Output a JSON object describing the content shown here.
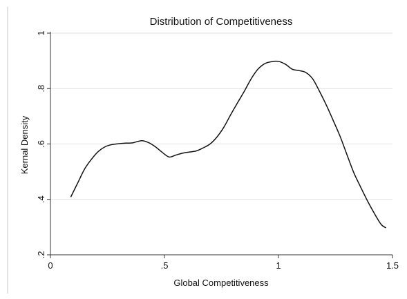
{
  "chart_data": {
    "type": "line",
    "title": "Distribution of Competitiveness",
    "xlabel": "Global Competitiveness",
    "ylabel": "Kernal Density",
    "xlim": [
      0,
      1.5
    ],
    "ylim": [
      0.2,
      1.0
    ],
    "xticks": [
      {
        "value": 0,
        "label": "0"
      },
      {
        "value": 0.5,
        "label": ".5"
      },
      {
        "value": 1,
        "label": "1"
      },
      {
        "value": 1.5,
        "label": "1.5"
      }
    ],
    "yticks": [
      {
        "value": 0.2,
        "label": ".2"
      },
      {
        "value": 0.4,
        "label": ".4"
      },
      {
        "value": 0.6,
        "label": ".6"
      },
      {
        "value": 0.8,
        "label": ".8"
      },
      {
        "value": 1.0,
        "label": "1"
      }
    ],
    "grid": true,
    "series": [
      {
        "x": [
          0.09,
          0.12,
          0.15,
          0.18,
          0.21,
          0.24,
          0.27,
          0.3,
          0.33,
          0.36,
          0.4,
          0.43,
          0.46,
          0.49,
          0.52,
          0.55,
          0.58,
          0.61,
          0.64,
          0.67,
          0.7,
          0.73,
          0.76,
          0.79,
          0.82,
          0.85,
          0.88,
          0.91,
          0.94,
          0.97,
          1.0,
          1.03,
          1.06,
          1.09,
          1.12,
          1.15,
          1.18,
          1.21,
          1.24,
          1.27,
          1.3,
          1.33,
          1.36,
          1.39,
          1.42,
          1.45,
          1.47
        ],
        "y": [
          0.41,
          0.46,
          0.51,
          0.545,
          0.573,
          0.59,
          0.598,
          0.601,
          0.603,
          0.604,
          0.612,
          0.605,
          0.59,
          0.57,
          0.553,
          0.56,
          0.567,
          0.571,
          0.575,
          0.586,
          0.6,
          0.625,
          0.66,
          0.705,
          0.748,
          0.79,
          0.835,
          0.87,
          0.89,
          0.897,
          0.898,
          0.888,
          0.87,
          0.865,
          0.858,
          0.835,
          0.79,
          0.74,
          0.685,
          0.628,
          0.562,
          0.497,
          0.445,
          0.395,
          0.35,
          0.31,
          0.298
        ]
      }
    ],
    "colors": {
      "line": "#111111",
      "grid": "#e2e2e2",
      "axis": "#333333",
      "background": "#ffffff"
    }
  }
}
